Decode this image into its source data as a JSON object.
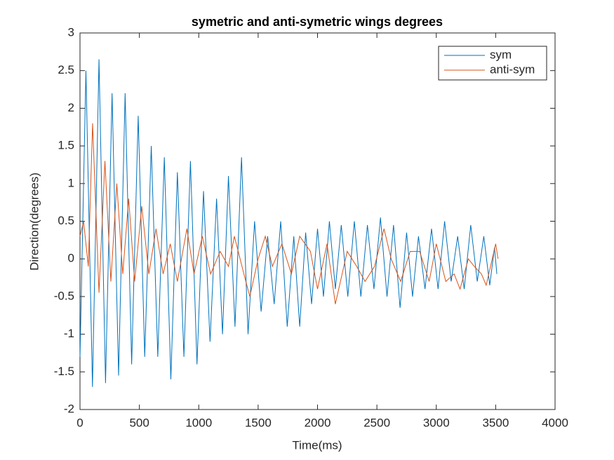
{
  "chart_data": {
    "type": "line",
    "title": "symetric and anti-symetric wings degrees",
    "x_label": "Time(ms)",
    "y_label": "Direction(degrees)",
    "xlim": [
      0,
      4000
    ],
    "ylim": [
      -2,
      3
    ],
    "xticks": [
      0,
      500,
      1000,
      1500,
      2000,
      2500,
      3000,
      3500,
      4000
    ],
    "yticks": [
      -2,
      -1.5,
      -1,
      -0.5,
      0,
      0.5,
      1,
      1.5,
      2,
      2.5,
      3
    ],
    "legend": "northeast",
    "series": [
      {
        "name": "sym",
        "color": "#0072bd",
        "x": [
          0,
          50,
          105,
          160,
          215,
          270,
          325,
          380,
          435,
          490,
          545,
          600,
          655,
          710,
          765,
          820,
          875,
          930,
          985,
          1040,
          1095,
          1150,
          1200,
          1250,
          1305,
          1360,
          1415,
          1470,
          1525,
          1580,
          1635,
          1690,
          1745,
          1800,
          1850,
          1900,
          1950,
          2000,
          2050,
          2100,
          2150,
          2200,
          2255,
          2310,
          2365,
          2420,
          2475,
          2530,
          2585,
          2640,
          2695,
          2750,
          2800,
          2850,
          2905,
          2960,
          3015,
          3070,
          3125,
          3180,
          3235,
          3290,
          3345,
          3400,
          3450,
          3490,
          3510
        ],
        "values": [
          -1.3,
          2.5,
          -1.7,
          2.65,
          -1.65,
          2.2,
          -1.55,
          2.2,
          -1.4,
          1.9,
          -1.3,
          1.5,
          -1.3,
          1.35,
          -1.6,
          1.15,
          -1.3,
          1.3,
          -1.4,
          0.9,
          -1.1,
          0.8,
          -1.0,
          1.1,
          -0.9,
          1.35,
          -1.0,
          0.5,
          -0.7,
          0.3,
          -0.6,
          0.5,
          -0.9,
          0.3,
          -0.9,
          0.35,
          -0.6,
          0.4,
          -0.5,
          0.5,
          -0.4,
          0.45,
          -0.5,
          0.5,
          -0.5,
          0.45,
          -0.4,
          0.55,
          -0.5,
          0.45,
          -0.65,
          0.35,
          -0.5,
          0.3,
          -0.4,
          0.4,
          -0.4,
          0.5,
          -0.3,
          0.3,
          -0.4,
          0.45,
          -0.3,
          0.3,
          -0.35,
          0.15,
          -0.2
        ]
      },
      {
        "name": "anti-sym",
        "color": "#d95319",
        "x": [
          0,
          30,
          70,
          106,
          160,
          210,
          260,
          310,
          360,
          410,
          460,
          520,
          580,
          640,
          700,
          760,
          820,
          900,
          960,
          1030,
          1100,
          1180,
          1250,
          1300,
          1380,
          1430,
          1500,
          1560,
          1620,
          1700,
          1780,
          1850,
          1940,
          2000,
          2080,
          2150,
          2250,
          2330,
          2400,
          2480,
          2560,
          2620,
          2700,
          2780,
          2860,
          2940,
          3000,
          3080,
          3150,
          3200,
          3270,
          3320,
          3380,
          3420,
          3500,
          3520
        ],
        "values": [
          0.3,
          0.5,
          -0.1,
          1.8,
          -0.45,
          1.3,
          -0.3,
          1.0,
          -0.2,
          0.8,
          -0.3,
          0.7,
          -0.2,
          0.4,
          -0.2,
          0.2,
          -0.3,
          0.4,
          -0.2,
          0.3,
          -0.2,
          0.1,
          -0.1,
          0.3,
          -0.2,
          -0.5,
          0.0,
          0.3,
          -0.1,
          0.2,
          -0.2,
          0.3,
          0.1,
          -0.4,
          0.2,
          -0.6,
          0.1,
          -0.1,
          -0.3,
          -0.1,
          0.4,
          0.0,
          -0.3,
          0.1,
          0.1,
          -0.3,
          0.2,
          -0.3,
          -0.2,
          -0.4,
          0.0,
          -0.1,
          -0.2,
          -0.35,
          0.2,
          0.0
        ]
      }
    ]
  }
}
